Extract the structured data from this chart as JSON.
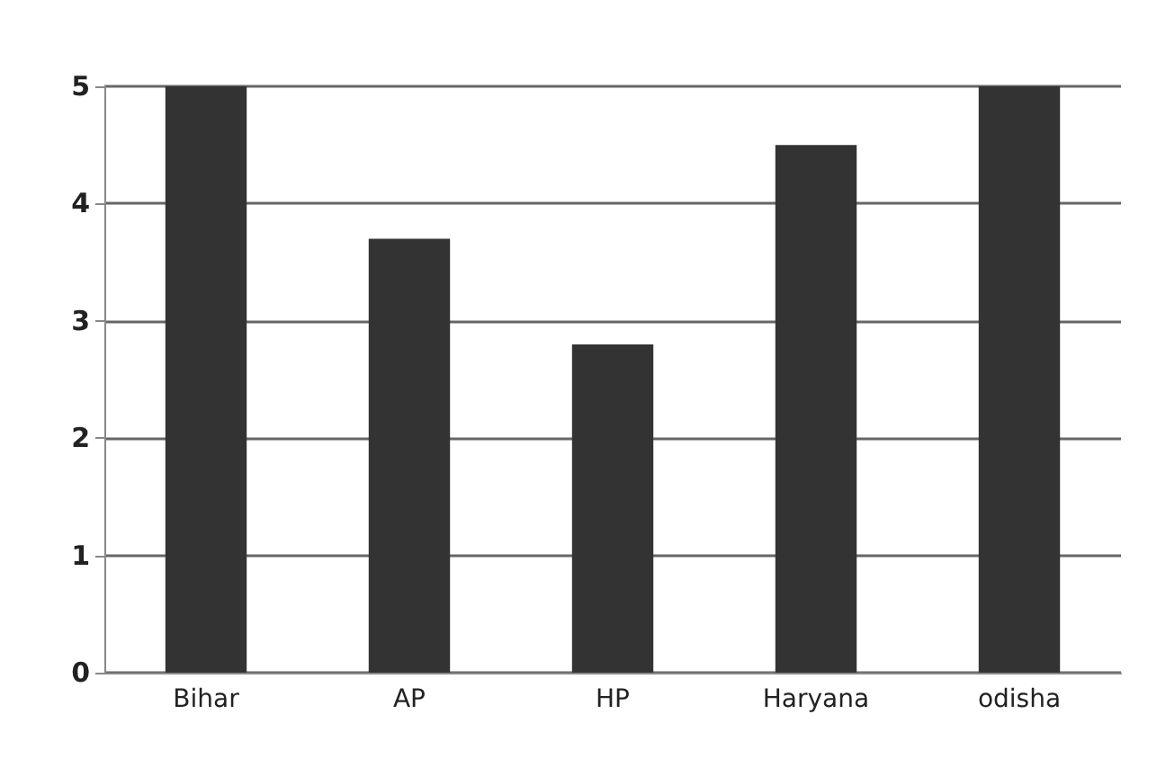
{
  "chart_data": {
    "type": "bar",
    "categories": [
      "Bihar",
      "AP",
      "HP",
      "Haryana",
      "odisha"
    ],
    "values": [
      5,
      3.7,
      2.8,
      4.5,
      5
    ],
    "color": "#333333",
    "ylim": [
      0,
      5
    ],
    "yticks": [
      0,
      1,
      2,
      3,
      4,
      5
    ],
    "grid": "y"
  }
}
